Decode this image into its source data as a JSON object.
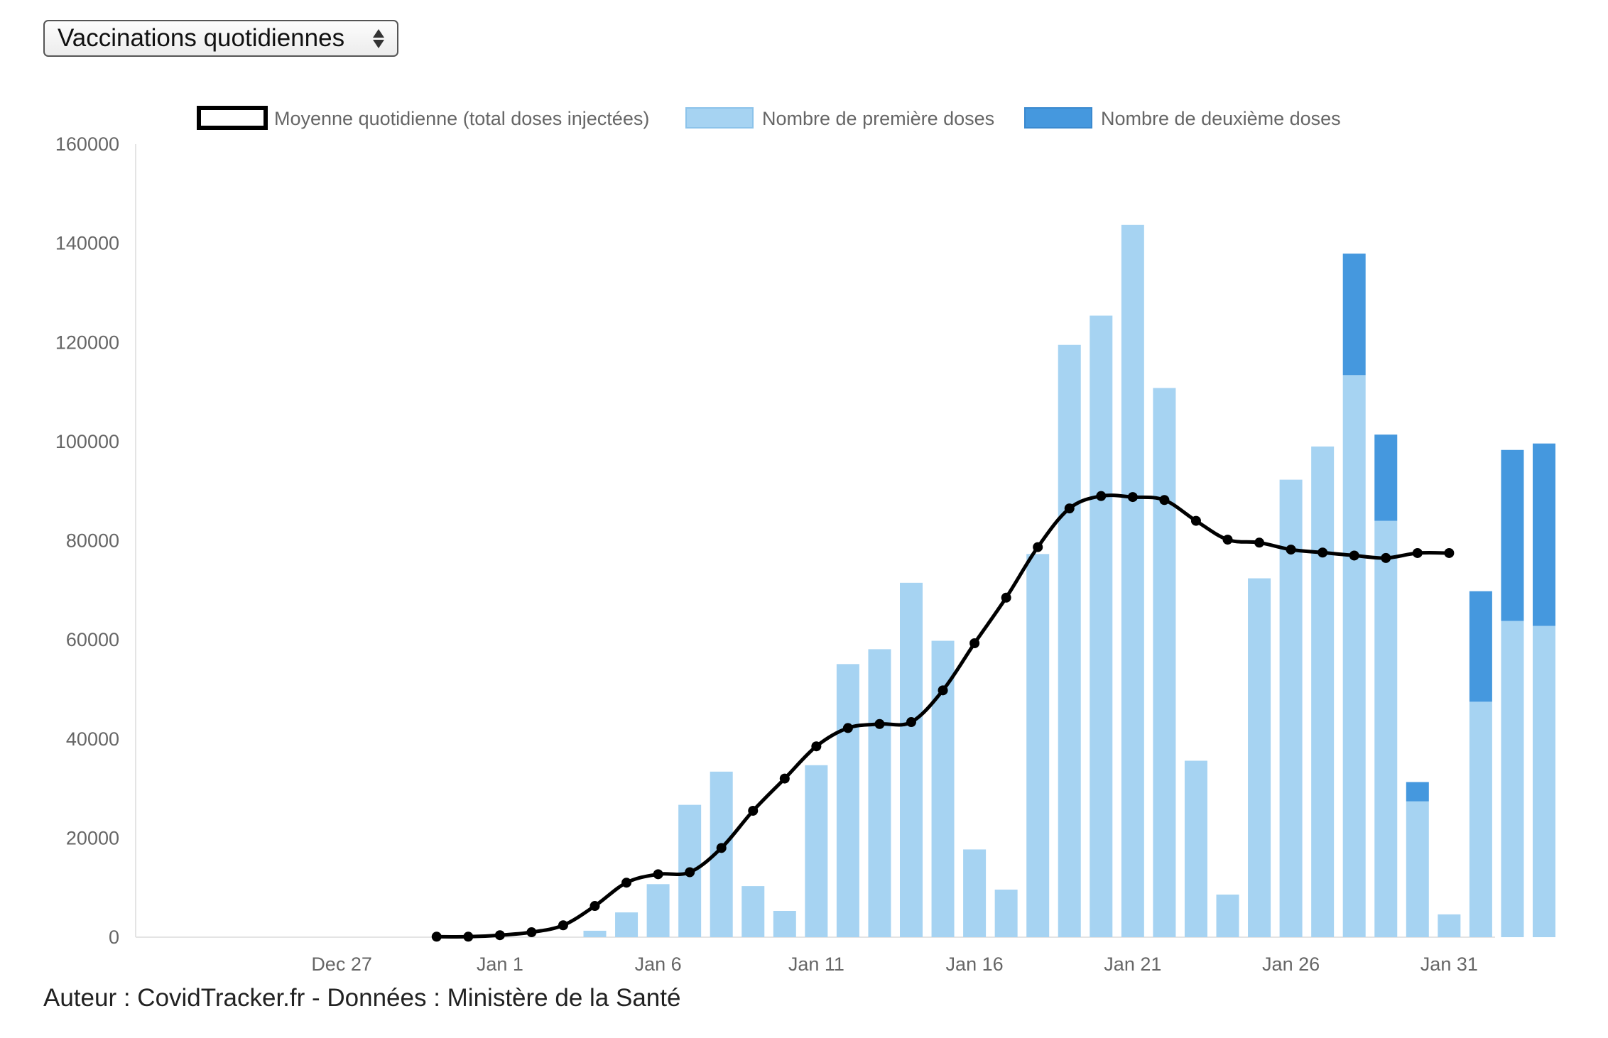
{
  "selector": {
    "selected_label": "Vaccinations quotidiennes"
  },
  "footer": {
    "credit": "Auteur : CovidTracker.fr - Données : Ministère de la Santé"
  },
  "colors": {
    "first_dose": "#a6d3f2",
    "second_dose": "#4598de",
    "average_line": "#000000",
    "axis_text": "#666666"
  },
  "chart_data": {
    "type": "bar",
    "stacked": true,
    "title": "",
    "xlabel": "",
    "ylabel": "",
    "ylim": [
      0,
      160000
    ],
    "yticks": [
      "0",
      "20000",
      "40000",
      "60000",
      "80000",
      "100000",
      "120000",
      "140000",
      "160000"
    ],
    "xtick_labels": [
      {
        "date": "2020-12-27",
        "label": "Dec 27"
      },
      {
        "date": "2021-01-01",
        "label": "Jan 1"
      },
      {
        "date": "2021-01-06",
        "label": "Jan 6"
      },
      {
        "date": "2021-01-11",
        "label": "Jan 11"
      },
      {
        "date": "2021-01-16",
        "label": "Jan 16"
      },
      {
        "date": "2021-01-21",
        "label": "Jan 21"
      },
      {
        "date": "2021-01-26",
        "label": "Jan 26"
      },
      {
        "date": "2021-01-31",
        "label": "Jan 31"
      }
    ],
    "categories": [
      "2020-12-25",
      "2020-12-26",
      "2020-12-27",
      "2020-12-28",
      "2020-12-29",
      "2020-12-30",
      "2020-12-31",
      "2021-01-01",
      "2021-01-02",
      "2021-01-03",
      "2021-01-04",
      "2021-01-05",
      "2021-01-06",
      "2021-01-07",
      "2021-01-08",
      "2021-01-09",
      "2021-01-10",
      "2021-01-11",
      "2021-01-12",
      "2021-01-13",
      "2021-01-14",
      "2021-01-15",
      "2021-01-16",
      "2021-01-17",
      "2021-01-18",
      "2021-01-19",
      "2021-01-20",
      "2021-01-21",
      "2021-01-22",
      "2021-01-23",
      "2021-01-24",
      "2021-01-25",
      "2021-01-26",
      "2021-01-27",
      "2021-01-28",
      "2021-01-29",
      "2021-01-30",
      "2021-01-31",
      "2021-02-01",
      "2021-02-02",
      "2021-02-03"
    ],
    "legend_position": "top",
    "grid": false,
    "series": [
      {
        "name": "Moyenne quotidienne (total doses injectées)",
        "type": "line",
        "values": [
          null,
          null,
          null,
          null,
          null,
          100,
          100,
          400,
          1000,
          2400,
          6300,
          11000,
          12700,
          13100,
          18000,
          25500,
          32000,
          38500,
          42200,
          43000,
          43400,
          49800,
          59300,
          68500,
          78700,
          86500,
          89000,
          88800,
          88200,
          84000,
          80200,
          79600,
          78200,
          77600,
          77000,
          76500,
          77500,
          77500,
          null,
          null,
          null
        ]
      },
      {
        "name": "Nombre de première doses",
        "type": "bar",
        "values": [
          0,
          0,
          0,
          0,
          0,
          0,
          0,
          0,
          0,
          0,
          1300,
          5000,
          10700,
          26700,
          33400,
          10300,
          5300,
          34700,
          55100,
          58100,
          71500,
          59800,
          17700,
          9600,
          77300,
          119500,
          125400,
          143700,
          110800,
          35600,
          8600,
          72400,
          92300,
          99000,
          113400,
          84000,
          27400,
          4600,
          47500,
          63800,
          62800
        ]
      },
      {
        "name": "Nombre de deuxième doses",
        "type": "bar",
        "values": [
          0,
          0,
          0,
          0,
          0,
          0,
          0,
          0,
          0,
          0,
          0,
          0,
          0,
          0,
          0,
          0,
          0,
          0,
          0,
          0,
          0,
          0,
          0,
          0,
          0,
          0,
          0,
          0,
          0,
          0,
          0,
          0,
          0,
          0,
          24500,
          17400,
          3900,
          0,
          22300,
          34500,
          36800
        ]
      }
    ]
  }
}
